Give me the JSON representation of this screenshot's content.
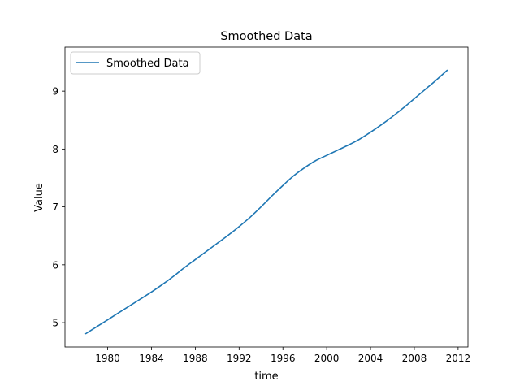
{
  "chart_data": {
    "type": "line",
    "title": "Smoothed Data",
    "xlabel": "time",
    "ylabel": "Value",
    "xlim": [
      1976.1,
      2012.9
    ],
    "ylim": [
      4.58,
      9.76
    ],
    "xticks": [
      1980,
      1984,
      1988,
      1992,
      1996,
      2000,
      2004,
      2008,
      2012
    ],
    "yticks": [
      5,
      6,
      7,
      8,
      9
    ],
    "grid": false,
    "legend": {
      "placement": "top-left"
    },
    "series": [
      {
        "name": "Smoothed Data",
        "color": "#1f77b4",
        "x": [
          1978,
          1979,
          1980,
          1981,
          1982,
          1983,
          1984,
          1985,
          1986,
          1987,
          1988,
          1989,
          1990,
          1991,
          1992,
          1993,
          1994,
          1995,
          1996,
          1997,
          1998,
          1999,
          2000,
          2001,
          2002,
          2003,
          2004,
          2005,
          2006,
          2007,
          2008,
          2009,
          2010,
          2011
        ],
        "y": [
          4.81,
          4.93,
          5.05,
          5.17,
          5.29,
          5.41,
          5.53,
          5.66,
          5.8,
          5.95,
          6.09,
          6.23,
          6.37,
          6.51,
          6.66,
          6.82,
          7.0,
          7.19,
          7.37,
          7.54,
          7.68,
          7.8,
          7.89,
          7.98,
          8.07,
          8.17,
          8.29,
          8.42,
          8.56,
          8.71,
          8.87,
          9.03,
          9.19,
          9.36
        ]
      }
    ]
  }
}
